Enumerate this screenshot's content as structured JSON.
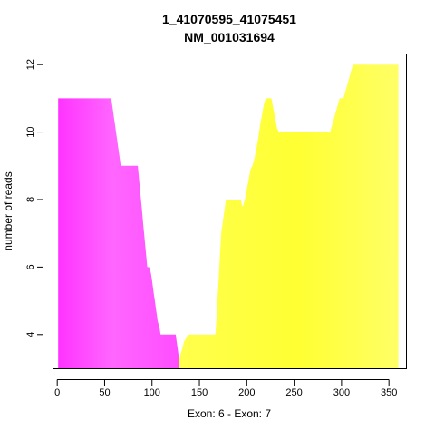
{
  "chart_data": {
    "type": "area",
    "title": "1_41070595_41075451",
    "subtitle": "NM_001031694",
    "xlabel": "Exon: 6 - Exon: 7",
    "ylabel": "number of reads",
    "xlim": [
      -4,
      368
    ],
    "ylim": [
      3,
      12.3
    ],
    "xticks": [
      0,
      50,
      100,
      150,
      200,
      250,
      300,
      350
    ],
    "yticks": [
      4,
      6,
      8,
      10,
      12
    ],
    "baseline": 3,
    "grid": false,
    "colors": {
      "exon6_base": "#ff4dff",
      "exon6_light": "#ff66ff",
      "exon6_edge": "#ff33ff",
      "exon7_base": "#ffff4d",
      "exon7_light": "#ffff66",
      "exon7_bright": "#ffff33"
    },
    "series": [
      {
        "name": "Exon: 6",
        "x": [
          1,
          56,
          57,
          58,
          59,
          60,
          61,
          62,
          63,
          64,
          65,
          66,
          67,
          68,
          69,
          70,
          71,
          72,
          73,
          74,
          75,
          76,
          77,
          78,
          79,
          80,
          81,
          82,
          83,
          84,
          85,
          86,
          87,
          88,
          89,
          90,
          91,
          92,
          93,
          94,
          95,
          96,
          97,
          98,
          99,
          100,
          101,
          102,
          103,
          104,
          105,
          106,
          107,
          108,
          109,
          110,
          111,
          112,
          113,
          114,
          115,
          116,
          117,
          118,
          119,
          120,
          121,
          122,
          123,
          124,
          125,
          126,
          127,
          128,
          129
        ],
        "values": [
          11,
          11,
          11,
          10.8,
          10.6,
          10.4,
          10.2,
          10,
          9.8,
          9.6,
          9.4,
          9.2,
          9,
          9,
          9,
          9,
          9,
          9,
          9,
          9,
          9,
          9,
          9,
          9,
          9,
          9,
          9,
          9,
          9,
          9,
          9,
          8.7,
          8.4,
          8.1,
          7.8,
          7.5,
          7.2,
          6.9,
          6.6,
          6.3,
          6,
          6,
          6,
          5.9,
          5.8,
          5.6,
          5.4,
          5.2,
          5,
          4.8,
          4.6,
          4.4,
          4.3,
          4.2,
          4,
          4,
          4,
          4,
          4,
          4,
          4,
          4,
          4,
          4,
          4,
          4,
          4,
          4,
          4,
          4,
          4,
          3.8,
          3.6,
          3.4,
          3
        ]
      },
      {
        "name": "Exon: 7",
        "x": [
          129,
          130,
          131,
          132,
          133,
          134,
          135,
          136,
          137,
          138,
          139,
          140,
          141,
          167,
          168,
          169,
          170,
          171,
          172,
          173,
          174,
          175,
          176,
          177,
          178,
          179,
          194,
          195,
          196,
          198,
          200,
          202,
          204,
          206,
          208,
          210,
          212,
          214,
          216,
          218,
          220,
          222,
          224,
          226,
          228,
          230,
          232,
          234,
          236,
          238,
          240,
          242,
          260,
          280,
          288,
          290,
          292,
          294,
          296,
          298,
          300,
          302,
          304,
          306,
          308,
          310,
          312,
          314,
          360
        ],
        "values": [
          3.3,
          3.4,
          3.5,
          3.6,
          3.7,
          3.8,
          3.85,
          3.9,
          3.95,
          4,
          4,
          4,
          4,
          4,
          4.5,
          5,
          5.5,
          6,
          6.5,
          7,
          7.2,
          7.4,
          7.6,
          7.8,
          8,
          8,
          8,
          7.8,
          7.8,
          8,
          8.3,
          8.6,
          8.9,
          9,
          9.2,
          9.5,
          9.8,
          10.2,
          10.5,
          10.8,
          11,
          11,
          11,
          11,
          10.7,
          10.4,
          10.1,
          10,
          10,
          10,
          10,
          10,
          10,
          10,
          10,
          10.2,
          10.4,
          10.6,
          10.8,
          11,
          11,
          11,
          11.2,
          11.4,
          11.6,
          11.8,
          12,
          12,
          12
        ]
      }
    ]
  }
}
